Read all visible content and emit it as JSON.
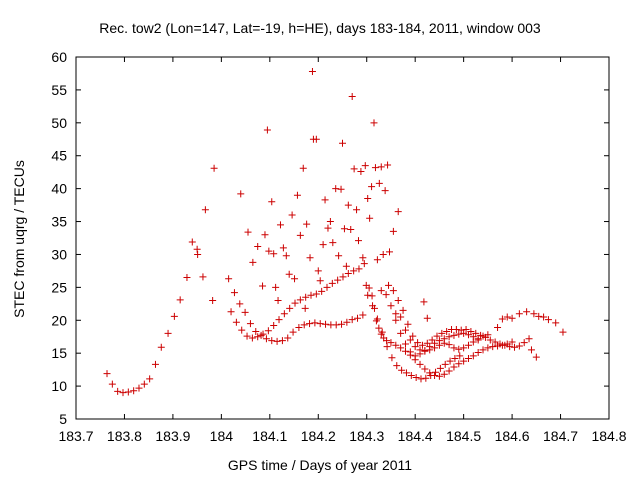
{
  "chart_data": {
    "type": "scatter",
    "title": "Rec. tow2 (Lon=147, Lat=-19, h=HE), days 183-184, 2011, window 003",
    "xlabel": "GPS time / Days of year 2011",
    "ylabel": "STEC from uqrg / TECUs",
    "xlim": [
      183.7,
      184.8
    ],
    "ylim": [
      5,
      60
    ],
    "xticks": [
      "183.7",
      "183.8",
      "183.9",
      "184",
      "184.1",
      "184.2",
      "184.3",
      "184.4",
      "184.5",
      "184.6",
      "184.7",
      "184.8"
    ],
    "yticks": [
      "5",
      "10",
      "15",
      "20",
      "25",
      "30",
      "35",
      "40",
      "45",
      "50",
      "55",
      "60"
    ],
    "grid": false,
    "marker": "+",
    "color": "#cc0000",
    "points": [
      [
        183.764,
        11.9
      ],
      [
        183.775,
        10.3
      ],
      [
        183.786,
        9.2
      ],
      [
        183.797,
        9.0
      ],
      [
        183.808,
        9.1
      ],
      [
        183.819,
        9.3
      ],
      [
        183.83,
        9.7
      ],
      [
        183.841,
        10.3
      ],
      [
        183.852,
        11.1
      ],
      [
        183.864,
        13.3
      ],
      [
        183.876,
        15.9
      ],
      [
        183.89,
        18.0
      ],
      [
        183.903,
        20.6
      ],
      [
        183.915,
        23.1
      ],
      [
        183.929,
        26.5
      ],
      [
        183.94,
        31.9
      ],
      [
        183.95,
        30.8
      ],
      [
        183.951,
        30.0
      ],
      [
        183.962,
        26.6
      ],
      [
        183.967,
        36.8
      ],
      [
        183.985,
        43.1
      ],
      [
        183.982,
        23.0
      ],
      [
        184.015,
        26.3
      ],
      [
        184.027,
        24.2
      ],
      [
        184.038,
        22.5
      ],
      [
        184.049,
        21.2
      ],
      [
        184.06,
        19.5
      ],
      [
        184.071,
        18.3
      ],
      [
        184.082,
        17.7
      ],
      [
        184.093,
        17.2
      ],
      [
        184.104,
        16.9
      ],
      [
        184.115,
        16.8
      ],
      [
        184.126,
        16.9
      ],
      [
        184.137,
        17.3
      ],
      [
        184.148,
        18.2
      ],
      [
        184.16,
        18.9
      ],
      [
        184.171,
        19.3
      ],
      [
        184.182,
        19.5
      ],
      [
        184.193,
        19.6
      ],
      [
        184.204,
        19.5
      ],
      [
        184.215,
        19.4
      ],
      [
        184.226,
        19.3
      ],
      [
        184.237,
        19.3
      ],
      [
        184.248,
        19.4
      ],
      [
        184.259,
        19.7
      ],
      [
        184.27,
        20.1
      ],
      [
        184.281,
        20.3
      ],
      [
        184.292,
        20.8
      ],
      [
        184.02,
        21.3
      ],
      [
        184.031,
        19.7
      ],
      [
        184.042,
        18.5
      ],
      [
        184.053,
        17.6
      ],
      [
        184.064,
        17.3
      ],
      [
        184.075,
        17.5
      ],
      [
        184.086,
        17.9
      ],
      [
        184.097,
        18.4
      ],
      [
        184.108,
        19.2
      ],
      [
        184.119,
        20.1
      ],
      [
        184.13,
        21.0
      ],
      [
        184.141,
        21.8
      ],
      [
        184.152,
        22.6
      ],
      [
        184.163,
        23.1
      ],
      [
        184.174,
        23.5
      ],
      [
        184.185,
        23.8
      ],
      [
        184.196,
        24.0
      ],
      [
        184.207,
        24.4
      ],
      [
        184.218,
        25.0
      ],
      [
        184.229,
        25.6
      ],
      [
        184.24,
        26.1
      ],
      [
        184.251,
        26.6
      ],
      [
        184.262,
        27.1
      ],
      [
        184.273,
        27.5
      ],
      [
        184.284,
        27.8
      ],
      [
        184.295,
        28.6
      ],
      [
        184.04,
        39.2
      ],
      [
        184.055,
        33.4
      ],
      [
        184.065,
        28.8
      ],
      [
        184.075,
        31.2
      ],
      [
        184.085,
        25.2
      ],
      [
        184.09,
        33.0
      ],
      [
        184.095,
        48.9
      ],
      [
        184.098,
        30.5
      ],
      [
        184.104,
        38.0
      ],
      [
        184.108,
        30.1
      ],
      [
        184.112,
        25.0
      ],
      [
        184.117,
        23.0
      ],
      [
        184.122,
        34.5
      ],
      [
        184.128,
        31.0
      ],
      [
        184.134,
        29.8
      ],
      [
        184.14,
        27.0
      ],
      [
        184.146,
        36.0
      ],
      [
        184.151,
        26.3
      ],
      [
        184.157,
        39.0
      ],
      [
        184.163,
        32.9
      ],
      [
        184.169,
        43.1
      ],
      [
        184.173,
        21.8
      ],
      [
        184.176,
        34.6
      ],
      [
        184.183,
        29.5
      ],
      [
        184.188,
        57.8
      ],
      [
        184.19,
        47.5
      ],
      [
        184.196,
        47.5
      ],
      [
        184.2,
        27.5
      ],
      [
        184.204,
        26.0
      ],
      [
        184.21,
        31.5
      ],
      [
        184.214,
        38.3
      ],
      [
        184.22,
        34.0
      ],
      [
        184.225,
        35.0
      ],
      [
        184.23,
        31.8
      ],
      [
        184.236,
        40.0
      ],
      [
        184.242,
        29.8
      ],
      [
        184.247,
        39.9
      ],
      [
        184.25,
        46.9
      ],
      [
        184.254,
        33.9
      ],
      [
        184.258,
        28.2
      ],
      [
        184.262,
        37.5
      ],
      [
        184.267,
        33.8
      ],
      [
        184.27,
        54.0
      ],
      [
        184.274,
        43.0
      ],
      [
        184.279,
        36.8
      ],
      [
        184.283,
        32.1
      ],
      [
        184.288,
        42.6
      ],
      [
        184.292,
        29.5
      ],
      [
        184.297,
        43.5
      ],
      [
        184.302,
        38.5
      ],
      [
        184.306,
        35.5
      ],
      [
        184.31,
        40.3
      ],
      [
        184.315,
        50.0
      ],
      [
        184.318,
        43.2
      ],
      [
        184.322,
        29.2
      ],
      [
        184.326,
        40.8
      ],
      [
        184.33,
        43.3
      ],
      [
        184.334,
        30.0
      ],
      [
        184.338,
        39.7
      ],
      [
        184.343,
        43.6
      ],
      [
        184.347,
        30.4
      ],
      [
        184.355,
        33.5
      ],
      [
        184.365,
        36.5
      ],
      [
        184.299,
        25.3
      ],
      [
        184.305,
        24.9
      ],
      [
        184.311,
        23.7
      ],
      [
        184.316,
        21.8
      ],
      [
        184.32,
        19.9
      ],
      [
        184.325,
        18.8
      ],
      [
        184.33,
        17.9
      ],
      [
        184.335,
        17.3
      ],
      [
        184.341,
        16.9
      ],
      [
        184.35,
        16.6
      ],
      [
        184.36,
        16.2
      ],
      [
        184.37,
        15.8
      ],
      [
        184.38,
        15.3
      ],
      [
        184.39,
        14.7
      ],
      [
        184.4,
        14.0
      ],
      [
        184.41,
        13.3
      ],
      [
        184.42,
        12.6
      ],
      [
        184.43,
        12.0
      ],
      [
        184.44,
        11.6
      ],
      [
        184.45,
        11.5
      ],
      [
        184.46,
        11.8
      ],
      [
        184.47,
        12.3
      ],
      [
        184.48,
        12.9
      ],
      [
        184.49,
        13.4
      ],
      [
        184.5,
        13.8
      ],
      [
        184.51,
        14.2
      ],
      [
        184.52,
        14.6
      ],
      [
        184.53,
        15.1
      ],
      [
        184.54,
        15.5
      ],
      [
        184.55,
        15.8
      ],
      [
        184.56,
        16.0
      ],
      [
        184.57,
        16.1
      ],
      [
        184.58,
        16.2
      ],
      [
        184.59,
        16.4
      ],
      [
        184.6,
        16.7
      ],
      [
        184.302,
        23.8
      ],
      [
        184.312,
        22.2
      ],
      [
        184.322,
        20.2
      ],
      [
        184.332,
        18.2
      ],
      [
        184.342,
        16.0
      ],
      [
        184.352,
        14.3
      ],
      [
        184.362,
        13.1
      ],
      [
        184.372,
        12.4
      ],
      [
        184.382,
        12.0
      ],
      [
        184.392,
        11.6
      ],
      [
        184.402,
        11.3
      ],
      [
        184.412,
        11.1
      ],
      [
        184.422,
        11.2
      ],
      [
        184.432,
        11.6
      ],
      [
        184.442,
        12.1
      ],
      [
        184.452,
        12.7
      ],
      [
        184.462,
        13.3
      ],
      [
        184.472,
        13.8
      ],
      [
        184.482,
        14.2
      ],
      [
        184.492,
        14.6
      ],
      [
        184.33,
        24.5
      ],
      [
        184.34,
        23.9
      ],
      [
        184.35,
        22.2
      ],
      [
        184.36,
        20.0
      ],
      [
        184.37,
        18.0
      ],
      [
        184.38,
        16.4
      ],
      [
        184.39,
        15.2
      ],
      [
        184.4,
        14.6
      ],
      [
        184.41,
        14.9
      ],
      [
        184.42,
        15.4
      ],
      [
        184.43,
        16.0
      ],
      [
        184.44,
        16.5
      ],
      [
        184.45,
        16.9
      ],
      [
        184.46,
        17.2
      ],
      [
        184.47,
        17.5
      ],
      [
        184.48,
        17.7
      ],
      [
        184.49,
        17.9
      ],
      [
        184.5,
        18.0
      ],
      [
        184.51,
        17.8
      ],
      [
        184.52,
        17.5
      ],
      [
        184.53,
        17.0
      ],
      [
        184.345,
        25.3
      ],
      [
        184.355,
        24.5
      ],
      [
        184.365,
        23.0
      ],
      [
        184.375,
        21.5
      ],
      [
        184.385,
        19.4
      ],
      [
        184.395,
        17.6
      ],
      [
        184.405,
        16.6
      ],
      [
        184.415,
        16.2
      ],
      [
        184.425,
        16.5
      ],
      [
        184.435,
        17.0
      ],
      [
        184.445,
        17.6
      ],
      [
        184.455,
        18.0
      ],
      [
        184.465,
        18.3
      ],
      [
        184.475,
        18.6
      ],
      [
        184.485,
        18.6
      ],
      [
        184.495,
        18.5
      ],
      [
        184.505,
        18.6
      ],
      [
        184.515,
        18.3
      ],
      [
        184.525,
        18.0
      ],
      [
        184.535,
        17.7
      ],
      [
        184.545,
        17.4
      ],
      [
        184.555,
        17.0
      ],
      [
        184.565,
        16.7
      ],
      [
        184.575,
        16.4
      ],
      [
        184.585,
        16.2
      ],
      [
        184.595,
        16.0
      ],
      [
        184.605,
        15.9
      ],
      [
        184.615,
        16.1
      ],
      [
        184.625,
        16.6
      ],
      [
        184.635,
        17.2
      ],
      [
        184.36,
        21.0
      ],
      [
        184.37,
        20.5
      ],
      [
        184.38,
        18.5
      ],
      [
        184.39,
        17.0
      ],
      [
        184.4,
        16.0
      ],
      [
        184.41,
        15.5
      ],
      [
        184.42,
        15.3
      ],
      [
        184.43,
        15.5
      ],
      [
        184.44,
        15.8
      ],
      [
        184.45,
        16.2
      ],
      [
        184.46,
        16.5
      ],
      [
        184.47,
        16.3
      ],
      [
        184.48,
        15.8
      ],
      [
        184.49,
        15.6
      ],
      [
        184.5,
        15.8
      ],
      [
        184.51,
        16.2
      ],
      [
        184.52,
        16.7
      ],
      [
        184.53,
        17.2
      ],
      [
        184.54,
        17.6
      ],
      [
        184.55,
        17.8
      ],
      [
        184.418,
        22.8
      ],
      [
        184.425,
        20.3
      ],
      [
        184.57,
        18.9
      ],
      [
        184.58,
        20.2
      ],
      [
        184.59,
        20.5
      ],
      [
        184.6,
        20.3
      ],
      [
        184.615,
        21.0
      ],
      [
        184.63,
        21.3
      ],
      [
        184.645,
        21.0
      ],
      [
        184.655,
        20.6
      ],
      [
        184.665,
        20.5
      ],
      [
        184.675,
        20.1
      ],
      [
        184.69,
        19.6
      ],
      [
        184.705,
        18.2
      ],
      [
        184.65,
        14.4
      ],
      [
        184.64,
        15.5
      ]
    ]
  }
}
